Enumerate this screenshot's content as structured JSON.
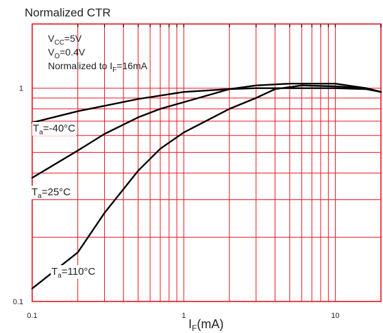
{
  "chart_data": {
    "type": "line",
    "title": "Normalized CTR",
    "xlabel_main": "I",
    "xlabel_sub": "F",
    "xlabel_unit": "(mA)",
    "x_scale": "log",
    "y_scale": "log",
    "xlim": [
      0.1,
      20
    ],
    "ylim": [
      0.1,
      2
    ],
    "x_tick_labels": [
      {
        "value": 0.1,
        "label": "0.1"
      },
      {
        "value": 1,
        "label": "1"
      },
      {
        "value": 10,
        "label": "10"
      }
    ],
    "y_tick_labels": [
      {
        "value": 1,
        "label": "1"
      },
      {
        "value": 0.1,
        "label": "0.1"
      }
    ],
    "grid": true,
    "grid_color": "#e8141c",
    "line_color": "#000000",
    "conditions": [
      {
        "main": "V",
        "sub": "CC",
        "rest": "=5V"
      },
      {
        "main": "V",
        "sub": "O",
        "rest": "=0.4V"
      },
      {
        "main": "Normalized to I",
        "sub": "F",
        "rest": "=16mA"
      }
    ],
    "series": [
      {
        "name": "T_a=-40°C",
        "label_main": "T",
        "label_sub": "a",
        "label_rest": "=-40°C",
        "points": [
          [
            0.1,
            0.69
          ],
          [
            0.2,
            0.78
          ],
          [
            0.5,
            0.89
          ],
          [
            1,
            0.96
          ],
          [
            2,
            0.99
          ],
          [
            3,
            1.0
          ],
          [
            5,
            1.0
          ],
          [
            10,
            1.0
          ],
          [
            16,
            0.99
          ],
          [
            20,
            0.96
          ]
        ]
      },
      {
        "name": "T_a=25°C",
        "label_main": "T",
        "label_sub": "a",
        "label_rest": "=25°C",
        "points": [
          [
            0.1,
            0.38
          ],
          [
            0.2,
            0.51
          ],
          [
            0.3,
            0.61
          ],
          [
            0.5,
            0.73
          ],
          [
            0.7,
            0.8
          ],
          [
            1,
            0.86
          ],
          [
            2,
            0.99
          ],
          [
            3,
            1.03
          ],
          [
            5,
            1.05
          ],
          [
            10,
            1.05
          ],
          [
            16,
            1.0
          ],
          [
            20,
            0.96
          ]
        ]
      },
      {
        "name": "T_a=110°C",
        "label_main": "T",
        "label_sub": "a",
        "label_rest": "=110°C",
        "points": [
          [
            0.1,
            0.115
          ],
          [
            0.2,
            0.17
          ],
          [
            0.3,
            0.26
          ],
          [
            0.5,
            0.41
          ],
          [
            0.7,
            0.52
          ],
          [
            1,
            0.62
          ],
          [
            2,
            0.8
          ],
          [
            3,
            0.9
          ],
          [
            4,
            0.99
          ],
          [
            6,
            1.03
          ],
          [
            10,
            1.02
          ],
          [
            16,
            1.0
          ],
          [
            20,
            0.96
          ]
        ]
      }
    ]
  }
}
